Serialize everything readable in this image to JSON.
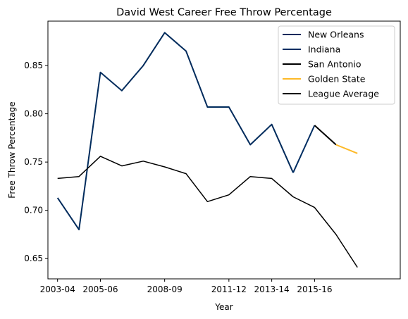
{
  "chart_data": {
    "type": "line",
    "title": "David West  Career Free Throw Percentage",
    "xlabel": "Year",
    "ylabel": "Free Throw Percentage",
    "x_ticks": [
      "2003-04",
      "2005-06",
      "2008-09",
      "2011-12",
      "2013-14",
      "2015-16"
    ],
    "y_ticks": [
      0.65,
      0.7,
      0.75,
      0.8,
      0.85
    ],
    "ylim": [
      0.629,
      0.896
    ],
    "xlim": [
      2002.55,
      2019.0
    ],
    "legend_position": "upper-right",
    "grid": false,
    "series": [
      {
        "name": "New Orleans",
        "color": "#002b5c",
        "x": [
          2003,
          2004,
          2005,
          2006,
          2007,
          2008,
          2009,
          2010,
          2011,
          2012,
          2013,
          2014
        ],
        "values": [
          0.713,
          0.68,
          0.843,
          0.824,
          0.85,
          0.884,
          0.865,
          0.807,
          0.807,
          0.768,
          0.789,
          0.739
        ]
      },
      {
        "name": "Indiana",
        "color": "#002d62",
        "x": [
          2014,
          2015
        ],
        "values": [
          0.739,
          0.788
        ]
      },
      {
        "name": "San Antonio",
        "color": "#000000",
        "x": [
          2015,
          2016
        ],
        "values": [
          0.788,
          0.768
        ]
      },
      {
        "name": "Golden State",
        "color": "#fdb927",
        "x": [
          2016,
          2017
        ],
        "values": [
          0.768,
          0.759
        ]
      },
      {
        "name": "League Average",
        "color": "#000000",
        "x": [
          2003,
          2004,
          2005,
          2006,
          2007,
          2008,
          2009,
          2010,
          2011,
          2012,
          2013,
          2014,
          2015,
          2016,
          2017
        ],
        "values": [
          0.733,
          0.735,
          0.756,
          0.746,
          0.751,
          0.745,
          0.738,
          0.709,
          0.716,
          0.735,
          0.733,
          0.714,
          0.703,
          0.675,
          0.641
        ]
      }
    ]
  }
}
